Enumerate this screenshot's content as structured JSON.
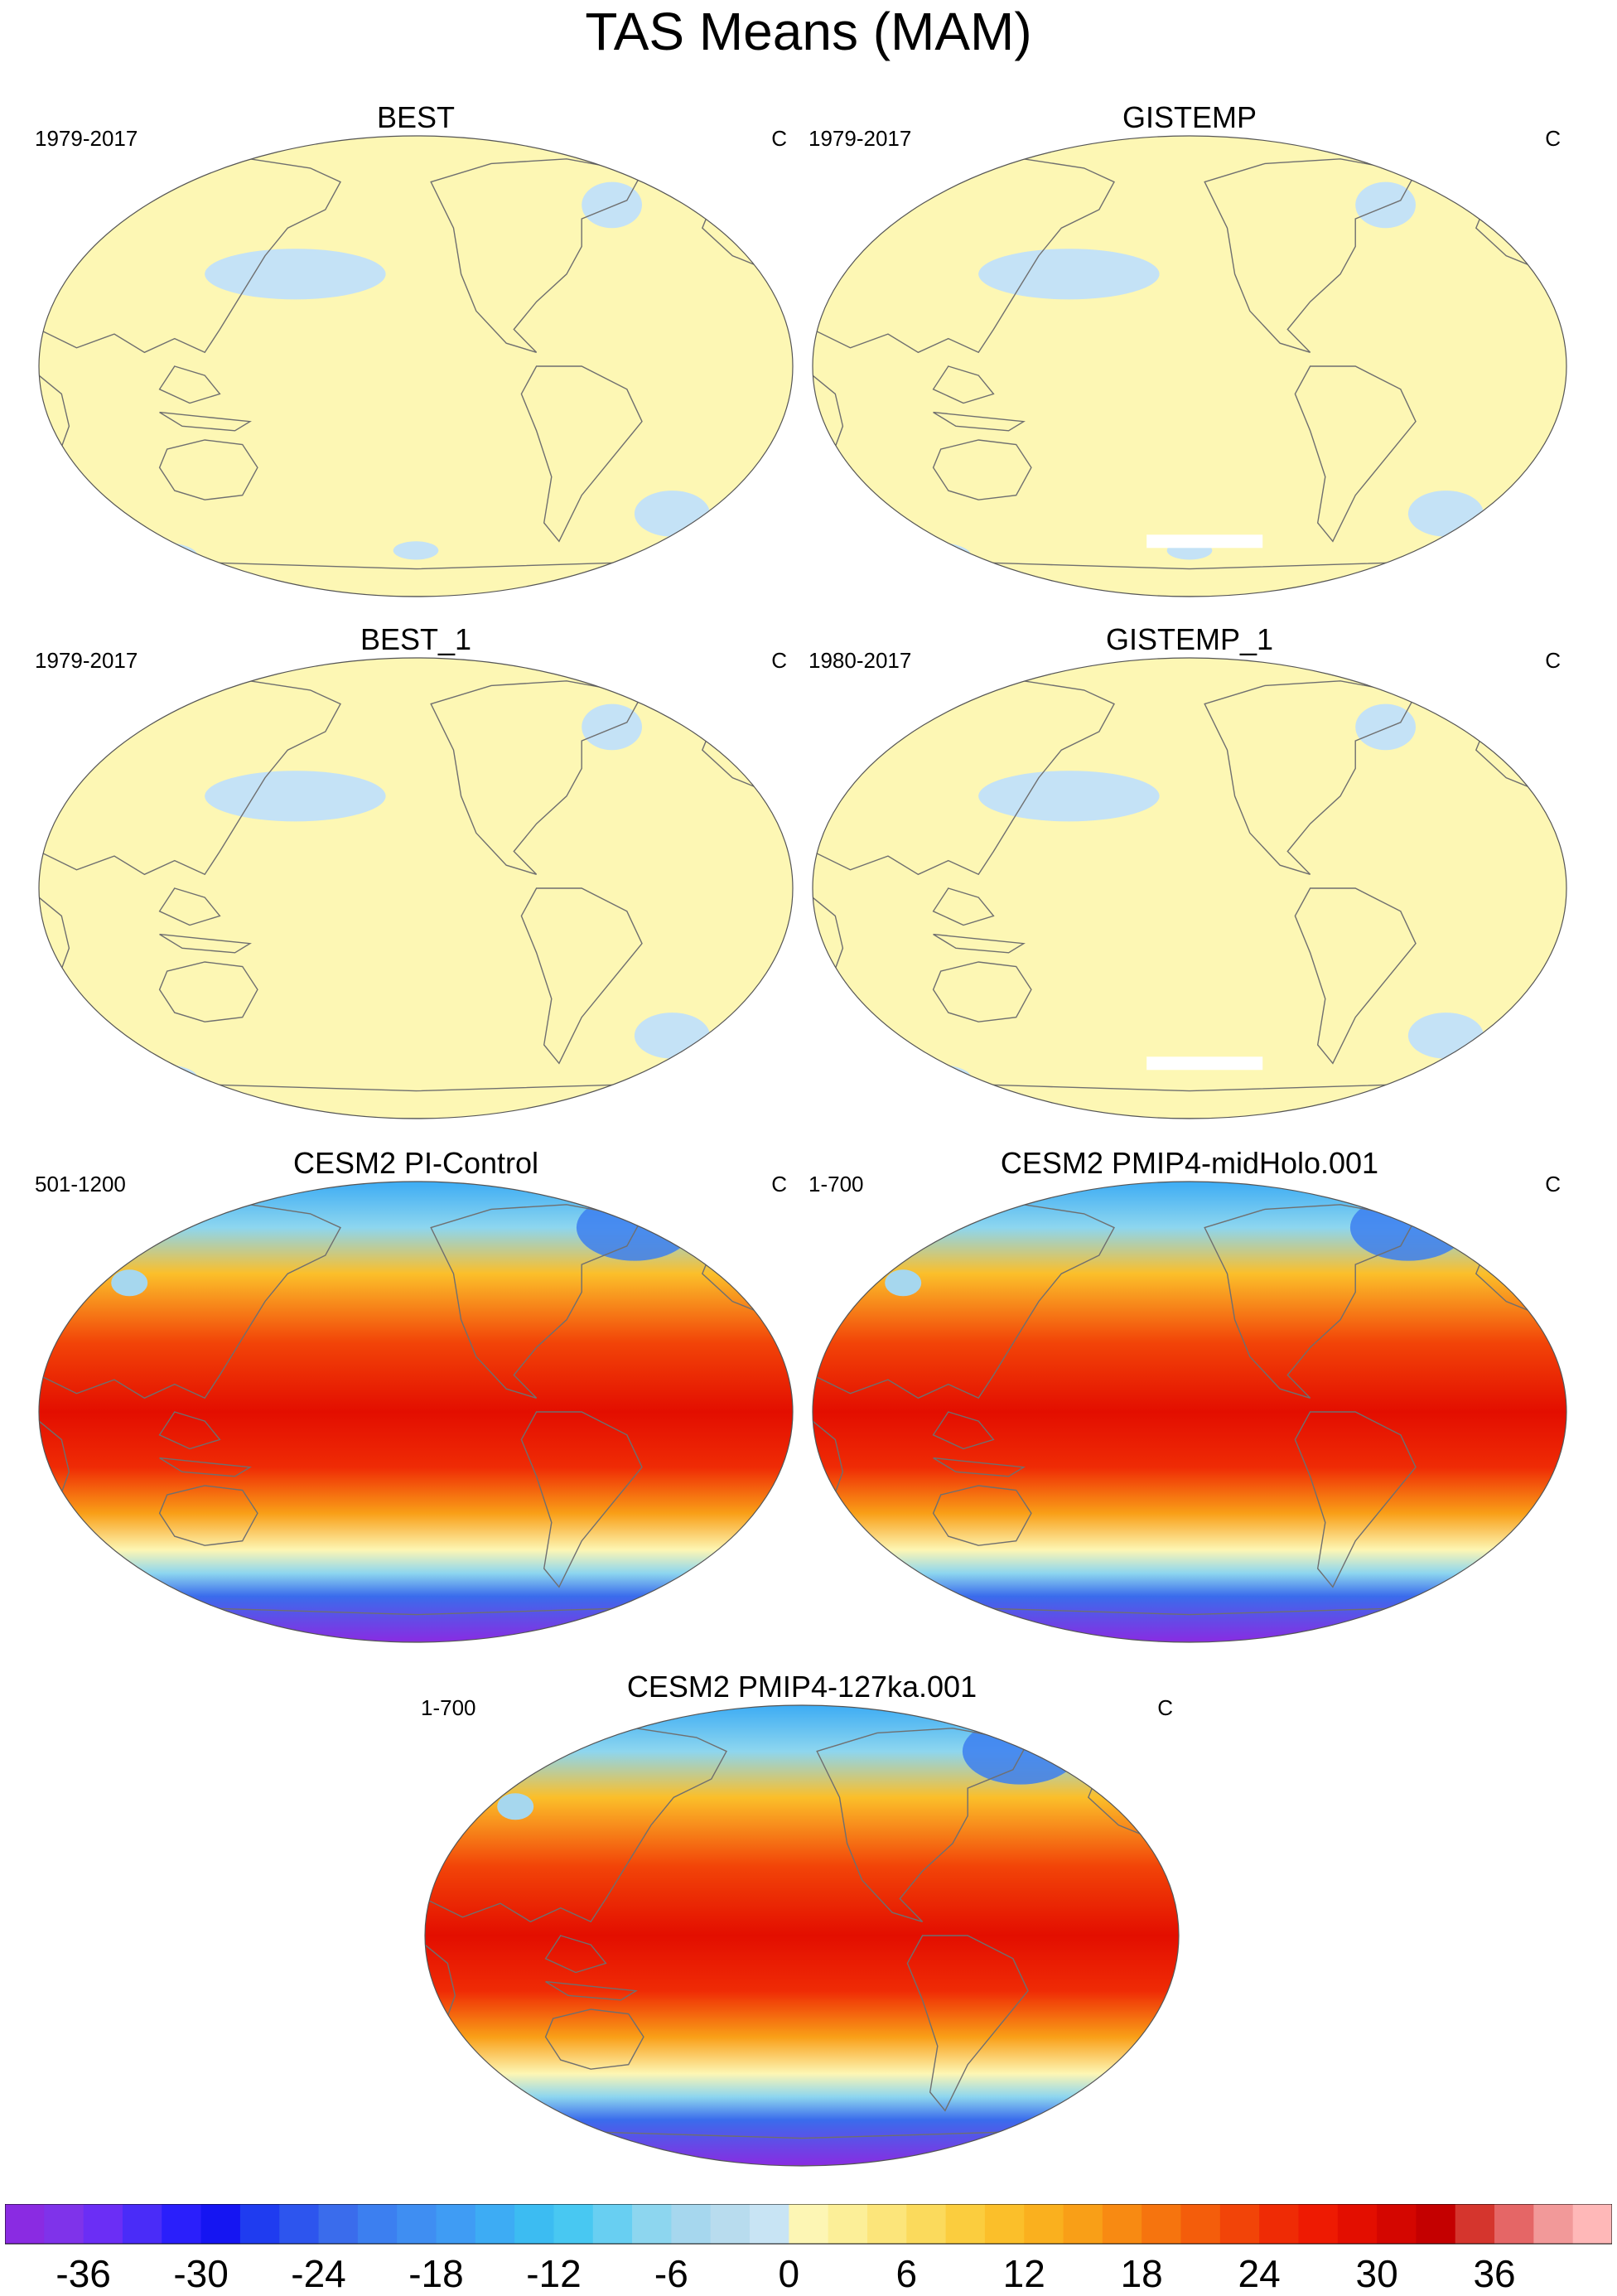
{
  "figure": {
    "title": "TAS Means (MAM)"
  },
  "colors": {
    "obs_fill": "#fdf7b4",
    "obs_cold": "#c4e2f6",
    "obs_white": "#ffffff",
    "coast": "#6f6f6f"
  },
  "panels": [
    {
      "title": "BEST",
      "period": "1979-2017",
      "units": "C",
      "kind": "obs",
      "icon": "world-map-icon"
    },
    {
      "title": "GISTEMP",
      "period": "1979-2017",
      "units": "C",
      "kind": "obs",
      "icon": "world-map-icon"
    },
    {
      "title": "BEST_1",
      "period": "1979-2017",
      "units": "C",
      "kind": "obs",
      "icon": "world-map-icon"
    },
    {
      "title": "GISTEMP_1",
      "period": "1980-2017",
      "units": "C",
      "kind": "obs",
      "icon": "world-map-icon"
    },
    {
      "title": "CESM2 PI-Control",
      "period": "501-1200",
      "units": "C",
      "kind": "model",
      "icon": "world-map-icon"
    },
    {
      "title": "CESM2 PMIP4-midHolo.001",
      "period": "1-700",
      "units": "C",
      "kind": "model",
      "icon": "world-map-icon"
    },
    {
      "title": "CESM2 PMIP4-127ka.001",
      "period": "1-700",
      "units": "C",
      "kind": "model",
      "icon": "world-map-icon"
    }
  ],
  "colorbar": {
    "levels": [
      -40,
      -38,
      -36,
      -34,
      -32,
      -30,
      -28,
      -26,
      -24,
      -22,
      -20,
      -18,
      -16,
      -14,
      -12,
      -10,
      -8,
      -6,
      -4,
      -2,
      0,
      2,
      4,
      6,
      8,
      10,
      12,
      14,
      16,
      18,
      20,
      22,
      24,
      26,
      28,
      30,
      32,
      34,
      36,
      38,
      40
    ],
    "tick_labels": [
      "-36",
      "-30",
      "-24",
      "-18",
      "-12",
      "-6",
      "0",
      "6",
      "12",
      "18",
      "24",
      "30",
      "36"
    ],
    "colors": [
      "#8a2be2",
      "#7f33ea",
      "#6b2ef5",
      "#4a2cf8",
      "#2a1ffb",
      "#1515f2",
      "#1f3cf0",
      "#2d55ee",
      "#3a6cec",
      "#3c7ff0",
      "#3f8ef2",
      "#3f9cf4",
      "#3dacf4",
      "#3cbcf2",
      "#48c8f2",
      "#68cff2",
      "#8dd6ef",
      "#a6d7ee",
      "#b8dcee",
      "#c8e4f4",
      "#fdf6b4",
      "#fcef98",
      "#fce57a",
      "#fbda5c",
      "#fbcd3e",
      "#fbbf2a",
      "#fab01e",
      "#f99f17",
      "#f88a12",
      "#f6740e",
      "#f45d0b",
      "#f24408",
      "#ef2b05",
      "#ee1a02",
      "#e30e00",
      "#d40600",
      "#c40000",
      "#d5352d",
      "#e56666",
      "#f29999",
      "#ffb8b8"
    ]
  }
}
